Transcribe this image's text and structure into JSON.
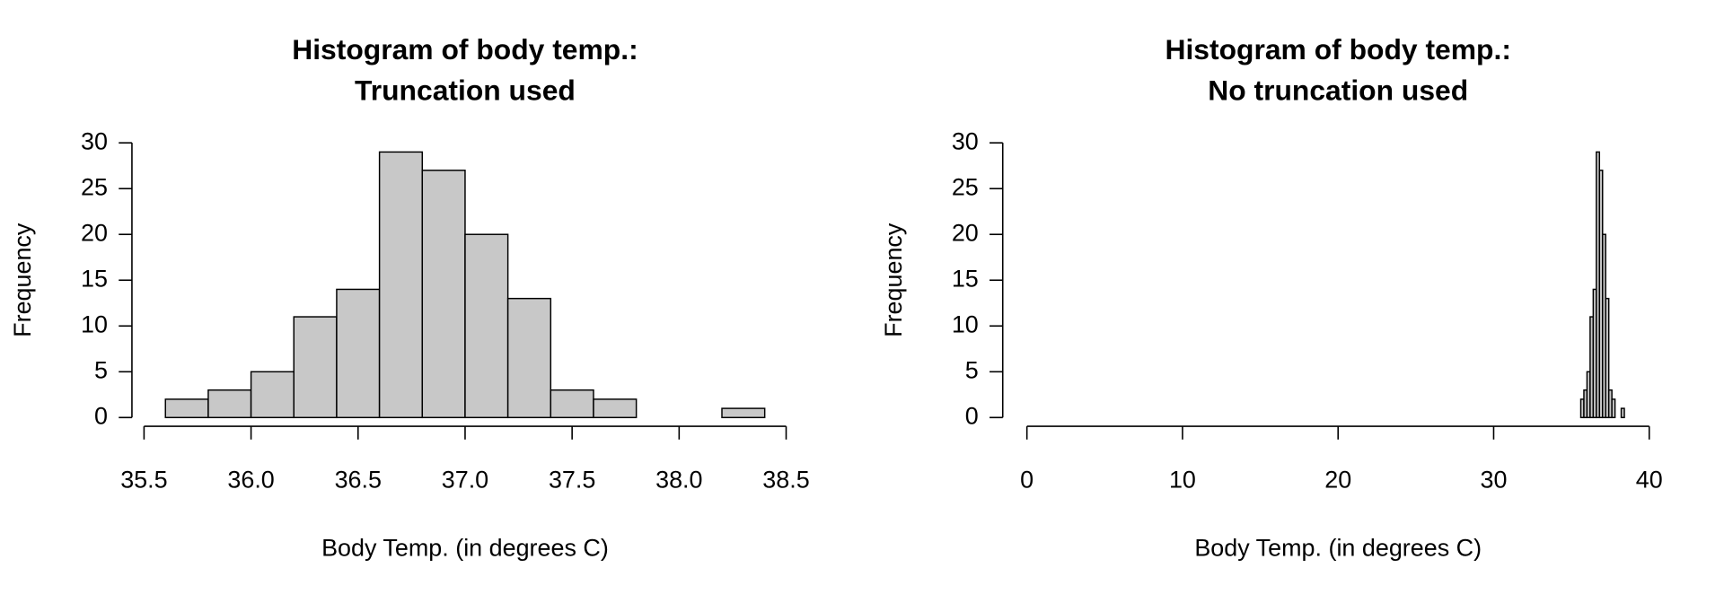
{
  "chart_data": [
    {
      "type": "histogram",
      "title": [
        "Histogram of body temp.:",
        "Truncation used"
      ],
      "xlabel": "Body Temp. (in degrees C)",
      "ylabel": "Frequency",
      "bins": [
        35.6,
        35.8,
        36.0,
        36.2,
        36.4,
        36.6,
        36.8,
        37.0,
        37.2,
        37.4,
        37.6,
        37.8,
        38.0,
        38.2,
        38.4
      ],
      "values": [
        2,
        3,
        5,
        11,
        14,
        29,
        27,
        20,
        13,
        3,
        2,
        0,
        0,
        1
      ],
      "color": "#c8c8c8",
      "xlim": [
        35.5,
        38.5
      ],
      "xticks": [
        35.5,
        {
          "value": 36,
          "label": "36.0"
        },
        36.5,
        {
          "value": 37,
          "label": "37.0"
        },
        37.5,
        {
          "value": 38,
          "label": "38.0"
        },
        38.5
      ],
      "ylim": [
        0,
        30
      ],
      "yticks": [
        0,
        5,
        10,
        15,
        20,
        25,
        30
      ]
    },
    {
      "type": "histogram",
      "title": [
        "Histogram of body temp.:",
        "No truncation used"
      ],
      "xlabel": "Body Temp. (in degrees C)",
      "ylabel": "Frequency",
      "bins": [
        35.6,
        35.8,
        36.0,
        36.2,
        36.4,
        36.6,
        36.8,
        37.0,
        37.2,
        37.4,
        37.6,
        37.8,
        38.0,
        38.2,
        38.4
      ],
      "values": [
        2,
        3,
        5,
        11,
        14,
        29,
        27,
        20,
        13,
        3,
        2,
        0,
        0,
        1
      ],
      "color": "#c8c8c8",
      "xlim": [
        0,
        40
      ],
      "xticks": [
        0,
        10,
        20,
        30,
        40
      ],
      "ylim": [
        0,
        30
      ],
      "yticks": [
        0,
        5,
        10,
        15,
        20,
        25,
        30
      ]
    }
  ]
}
